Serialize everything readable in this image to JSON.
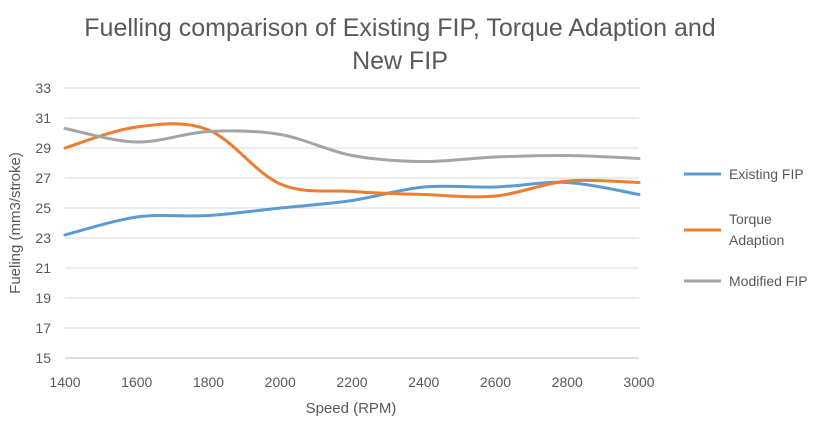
{
  "chart_data": {
    "type": "line",
    "title_line1": "Fuelling comparison of Existing FIP, Torque Adaption and",
    "title_line2": "New FIP",
    "xlabel": "Speed (RPM)",
    "ylabel": "Fueling (mm3/stroke)",
    "x": [
      1400,
      1600,
      1800,
      2000,
      2200,
      2400,
      2600,
      2800,
      3000
    ],
    "xlim": [
      1400,
      3000
    ],
    "ylim": [
      15,
      33
    ],
    "yticks": [
      15,
      17,
      19,
      21,
      23,
      25,
      27,
      29,
      31,
      33
    ],
    "grid": "horizontal",
    "legend_position": "right",
    "series": [
      {
        "name": "Existing FIP",
        "color": "#5B9BD5",
        "values": [
          23.2,
          24.4,
          24.5,
          25.0,
          25.5,
          26.4,
          26.4,
          26.7,
          25.9
        ]
      },
      {
        "name": "Torque Adaption",
        "name_lines": [
          "Torque",
          "Adaption"
        ],
        "color": "#ED7D31",
        "values": [
          29.0,
          30.4,
          30.2,
          26.6,
          26.1,
          25.9,
          25.8,
          26.8,
          26.7
        ]
      },
      {
        "name": "Modified FIP",
        "color": "#A5A5A5",
        "values": [
          30.3,
          29.4,
          30.1,
          29.9,
          28.5,
          28.1,
          28.4,
          28.5,
          28.3
        ]
      }
    ]
  }
}
